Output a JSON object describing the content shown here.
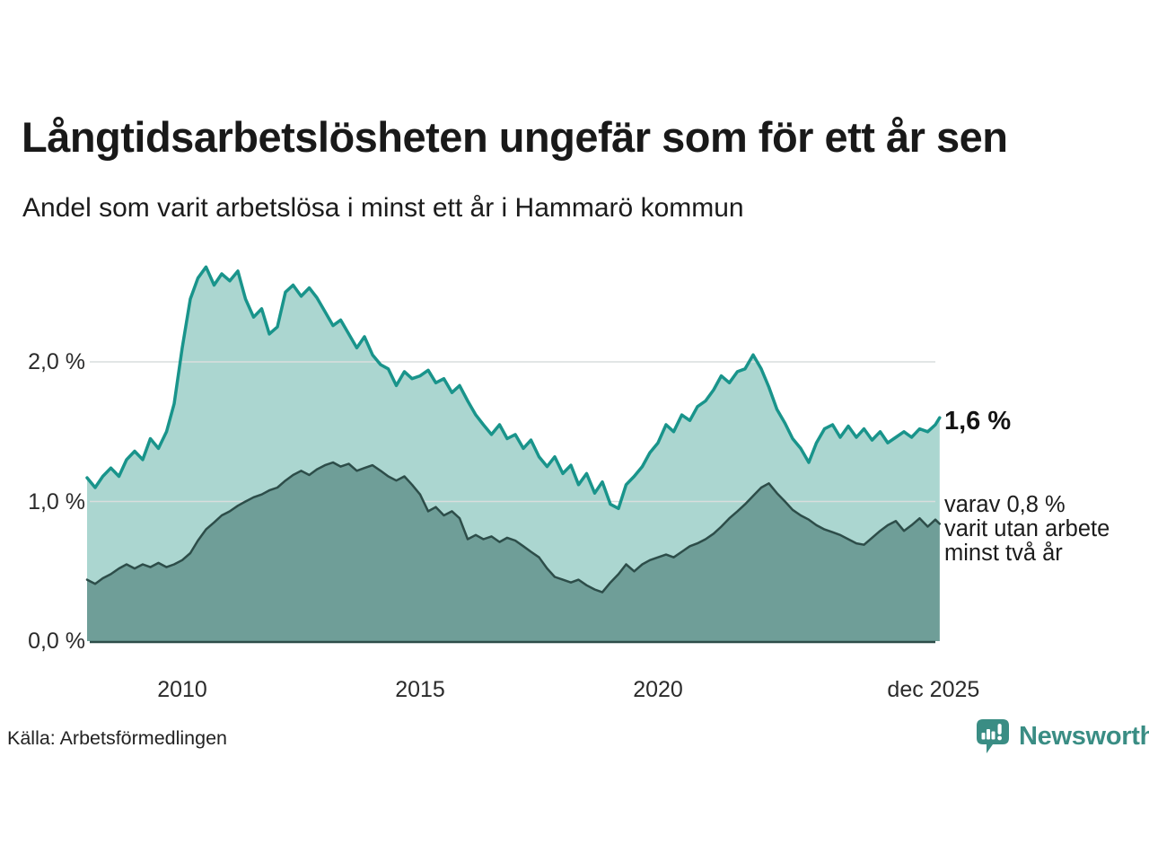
{
  "chart_data": {
    "type": "area",
    "title": "Långtidsarbetslösheten ungefär som för ett år sen",
    "subtitle": "Andel som varit arbetslösa i minst ett år i Hammarö kommun",
    "ylabel": "",
    "xlabel": "",
    "ylim": [
      0,
      2.8
    ],
    "grid_values": [
      1.0,
      2.0
    ],
    "grid_color": "#d9dddd",
    "y_ticks": [
      {
        "label": "2,0 %",
        "value": 2.0
      },
      {
        "label": "1,0 %",
        "value": 1.0
      },
      {
        "label": "0,0 %",
        "value": 0.0
      }
    ],
    "x_ticks": [
      {
        "label": "2010",
        "year": 2010
      },
      {
        "label": "2015",
        "year": 2015
      },
      {
        "label": "2020",
        "year": 2020
      },
      {
        "label": "dec 2025",
        "year": 2025.79
      }
    ],
    "x": [
      2008,
      2008.17,
      2008.33,
      2008.5,
      2008.67,
      2008.83,
      2009,
      2009.17,
      2009.33,
      2009.5,
      2009.67,
      2009.83,
      2010,
      2010.17,
      2010.33,
      2010.5,
      2010.67,
      2010.83,
      2011,
      2011.17,
      2011.33,
      2011.5,
      2011.67,
      2011.83,
      2012,
      2012.17,
      2012.33,
      2012.5,
      2012.67,
      2012.83,
      2013,
      2013.17,
      2013.33,
      2013.5,
      2013.67,
      2013.83,
      2014,
      2014.17,
      2014.33,
      2014.5,
      2014.67,
      2014.83,
      2015,
      2015.17,
      2015.33,
      2015.5,
      2015.67,
      2015.83,
      2016,
      2016.17,
      2016.33,
      2016.5,
      2016.67,
      2016.83,
      2017,
      2017.17,
      2017.33,
      2017.5,
      2017.67,
      2017.83,
      2018,
      2018.17,
      2018.33,
      2018.5,
      2018.67,
      2018.83,
      2019,
      2019.17,
      2019.33,
      2019.5,
      2019.67,
      2019.83,
      2020,
      2020.17,
      2020.33,
      2020.5,
      2020.67,
      2020.83,
      2021,
      2021.17,
      2021.33,
      2021.5,
      2021.67,
      2021.83,
      2022,
      2022.17,
      2022.33,
      2022.5,
      2022.67,
      2022.83,
      2023,
      2023.17,
      2023.33,
      2023.5,
      2023.67,
      2023.83,
      2024,
      2024.17,
      2024.33,
      2024.5,
      2024.67,
      2024.83,
      2025,
      2025.17,
      2025.33,
      2025.5,
      2025.67,
      2025.83,
      2025.92
    ],
    "series": [
      {
        "name": "Andel arbetslösa minst ett år",
        "line_color": "#19948b",
        "fill_color": "#abd6d0",
        "line_width": 3.5,
        "latest_label": "1,6 %",
        "values": [
          1.17,
          1.1,
          1.18,
          1.24,
          1.18,
          1.3,
          1.36,
          1.3,
          1.45,
          1.38,
          1.5,
          1.7,
          2.1,
          2.45,
          2.6,
          2.68,
          2.55,
          2.63,
          2.58,
          2.65,
          2.45,
          2.32,
          2.38,
          2.2,
          2.25,
          2.5,
          2.55,
          2.47,
          2.53,
          2.46,
          2.36,
          2.26,
          2.3,
          2.2,
          2.1,
          2.18,
          2.05,
          1.98,
          1.95,
          1.83,
          1.93,
          1.88,
          1.9,
          1.94,
          1.85,
          1.88,
          1.78,
          1.83,
          1.72,
          1.62,
          1.55,
          1.48,
          1.55,
          1.45,
          1.48,
          1.38,
          1.44,
          1.32,
          1.25,
          1.32,
          1.2,
          1.26,
          1.12,
          1.2,
          1.06,
          1.14,
          0.98,
          0.95,
          1.12,
          1.18,
          1.25,
          1.35,
          1.42,
          1.55,
          1.5,
          1.62,
          1.58,
          1.68,
          1.72,
          1.8,
          1.9,
          1.85,
          1.93,
          1.95,
          2.05,
          1.95,
          1.82,
          1.66,
          1.56,
          1.45,
          1.38,
          1.28,
          1.42,
          1.52,
          1.55,
          1.46,
          1.54,
          1.46,
          1.52,
          1.44,
          1.5,
          1.42,
          1.46,
          1.5,
          1.46,
          1.52,
          1.5,
          1.55,
          1.6
        ]
      },
      {
        "name": "varav utan arbete minst två år",
        "line_color": "#2d4d49",
        "fill_color": "#6f9e98",
        "line_width": 2.5,
        "latest_label": "0,8 %",
        "values": [
          0.44,
          0.41,
          0.45,
          0.48,
          0.52,
          0.55,
          0.52,
          0.55,
          0.53,
          0.56,
          0.53,
          0.55,
          0.58,
          0.63,
          0.72,
          0.8,
          0.85,
          0.9,
          0.93,
          0.97,
          1.0,
          1.03,
          1.05,
          1.08,
          1.1,
          1.15,
          1.19,
          1.22,
          1.19,
          1.23,
          1.26,
          1.28,
          1.25,
          1.27,
          1.22,
          1.24,
          1.26,
          1.22,
          1.18,
          1.15,
          1.18,
          1.12,
          1.05,
          0.93,
          0.96,
          0.9,
          0.93,
          0.88,
          0.73,
          0.76,
          0.73,
          0.75,
          0.71,
          0.74,
          0.72,
          0.68,
          0.64,
          0.6,
          0.52,
          0.46,
          0.44,
          0.42,
          0.44,
          0.4,
          0.37,
          0.35,
          0.42,
          0.48,
          0.55,
          0.5,
          0.55,
          0.58,
          0.6,
          0.62,
          0.6,
          0.64,
          0.68,
          0.7,
          0.73,
          0.77,
          0.82,
          0.88,
          0.93,
          0.98,
          1.04,
          1.1,
          1.13,
          1.06,
          1.0,
          0.94,
          0.9,
          0.87,
          0.83,
          0.8,
          0.78,
          0.76,
          0.73,
          0.7,
          0.69,
          0.74,
          0.79,
          0.83,
          0.86,
          0.79,
          0.83,
          0.88,
          0.82,
          0.87,
          0.84
        ]
      }
    ],
    "annotations": {
      "latest_total": "1,6 %",
      "secondary_lines": [
        "varav 0,8 %",
        "varit utan arbete",
        "minst två år"
      ]
    },
    "legend": "none",
    "grid": "horizontal"
  },
  "source": "Källa: Arbetsförmedlingen",
  "brand": {
    "name": "Newsworthy",
    "color": "#3a8d84",
    "icon": "bar-chart-speech-bubble"
  }
}
